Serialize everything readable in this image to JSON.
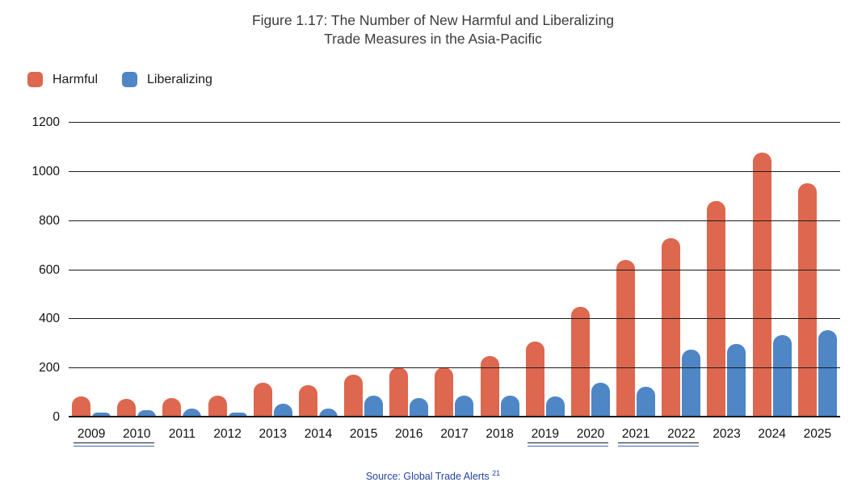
{
  "title": {
    "line1": "Figure 1.17: The Number of New Harmful and Liberalizing",
    "line2": "Trade Measures in the Asia-Pacific"
  },
  "legend": [
    {
      "label": "Harmful",
      "color": "#DD674F"
    },
    {
      "label": "Liberalizing",
      "color": "#4E86C6"
    }
  ],
  "source": {
    "text": "Source: Global Trade Alerts ",
    "superscript": "21"
  },
  "colors": {
    "harmful": "#DD674F",
    "liberalizing": "#4E86C6",
    "grid": "#1b1b1b",
    "title_text": "#3b3b3b",
    "source_text": "#2344A1",
    "link_underline_blue": "#3B66C4",
    "link_underline_black": "#1a1a1a"
  },
  "chart_data": {
    "type": "bar",
    "title": "Figure 1.17: The Number of New Harmful and Liberalizing Trade Measures in the Asia-Pacific",
    "xlabel": "",
    "ylabel": "",
    "categories": [
      "2009",
      "2010",
      "2011",
      "2012",
      "2013",
      "2014",
      "2015",
      "2016",
      "2017",
      "2018",
      "2019",
      "2020",
      "2021",
      "2022",
      "2023",
      "2024",
      "2025"
    ],
    "series": [
      {
        "name": "Harmful",
        "color": "#DD674F",
        "values": [
          85,
          75,
          80,
          90,
          140,
          130,
          175,
          205,
          205,
          250,
          310,
          450,
          640,
          730,
          880,
          1080,
          955
        ]
      },
      {
        "name": "Liberalizing",
        "color": "#4E86C6",
        "values": [
          20,
          30,
          35,
          20,
          55,
          35,
          90,
          80,
          90,
          90,
          85,
          140,
          125,
          275,
          300,
          335,
          355
        ]
      }
    ],
    "ylim": [
      0,
      1200
    ],
    "yticks": [
      0,
      200,
      400,
      600,
      800,
      1000,
      1200
    ],
    "grid": true,
    "legend_position": "top-left",
    "underlined_link_year_pairs": [
      [
        "2009",
        "2010"
      ],
      [
        "2019",
        "2020"
      ],
      [
        "2021",
        "2022"
      ]
    ]
  }
}
